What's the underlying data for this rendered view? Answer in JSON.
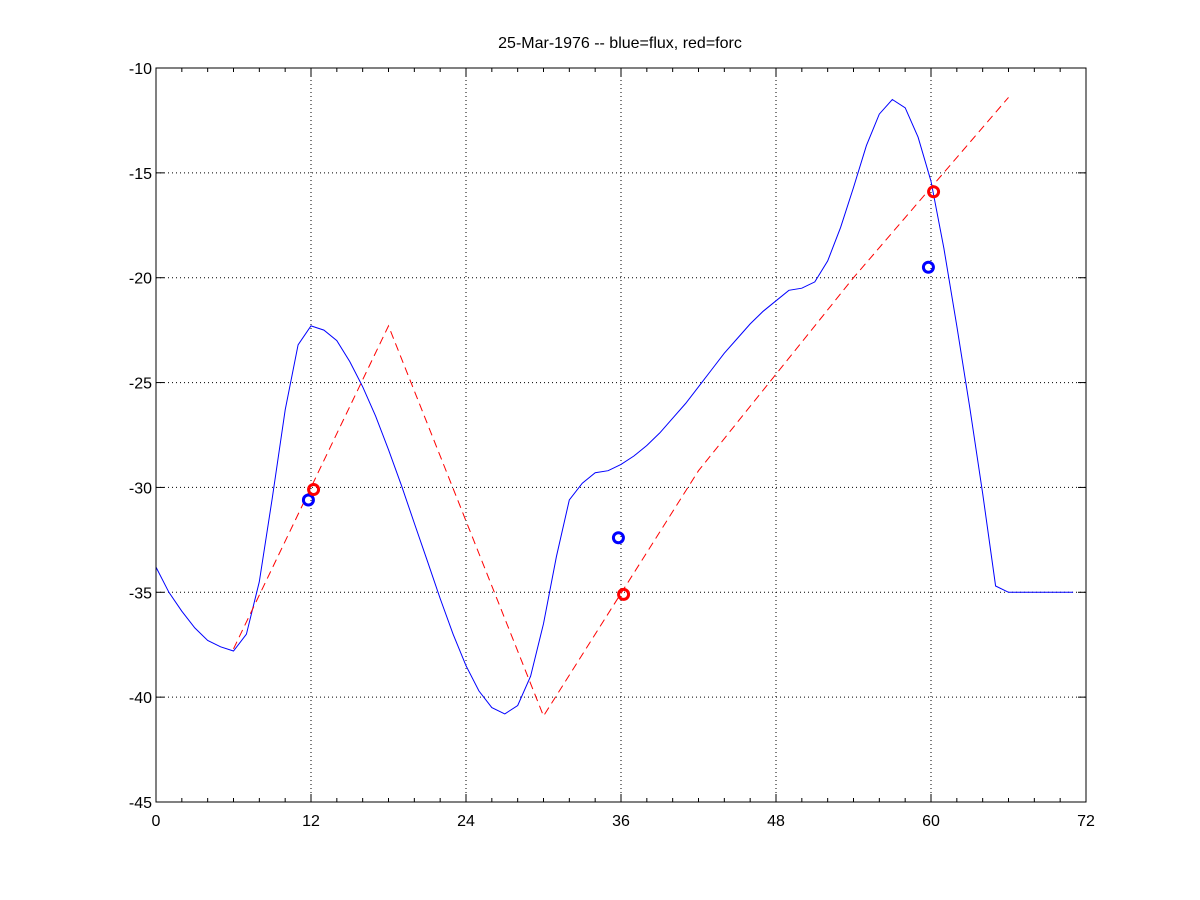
{
  "chart_data": {
    "type": "line",
    "title": "25-Mar-1976 -- blue=flux, red=forc",
    "xlabel": "",
    "ylabel": "",
    "xlim": [
      0,
      72
    ],
    "ylim": [
      -45,
      -10
    ],
    "xticks": [
      0,
      12,
      24,
      36,
      48,
      60,
      72
    ],
    "yticks": [
      -10,
      -15,
      -20,
      -25,
      -30,
      -35,
      -40,
      -45
    ],
    "xtick_labels": [
      "0",
      "12",
      "24",
      "36",
      "48",
      "60",
      "72"
    ],
    "ytick_labels": [
      "-10",
      "-15",
      "-20",
      "-25",
      "-30",
      "-35",
      "-40",
      "-45"
    ],
    "grid": true,
    "series": [
      {
        "color": "#0000ff",
        "style": "solid",
        "x": [
          0,
          1,
          2,
          3,
          4,
          5,
          6,
          7,
          8,
          9,
          10,
          11,
          12,
          13,
          14,
          15,
          16,
          17,
          18,
          19,
          20,
          21,
          22,
          23,
          24,
          25,
          26,
          27,
          28,
          29,
          30,
          31,
          32,
          33,
          34,
          35,
          36,
          37,
          38,
          39,
          40,
          41,
          42,
          43,
          44,
          45,
          46,
          47,
          48,
          49,
          50,
          51,
          52,
          53,
          54,
          55,
          56,
          57,
          58,
          59,
          60,
          61,
          62,
          63,
          64,
          65,
          66,
          67,
          68,
          69,
          70,
          71
        ],
        "y": [
          -33.8,
          -35.0,
          -35.9,
          -36.7,
          -37.3,
          -37.6,
          -37.8,
          -37.0,
          -34.5,
          -30.5,
          -26.3,
          -23.2,
          -22.3,
          -22.5,
          -23.0,
          -24.0,
          -25.2,
          -26.6,
          -28.2,
          -29.9,
          -31.7,
          -33.5,
          -35.3,
          -37.0,
          -38.5,
          -39.7,
          -40.5,
          -40.8,
          -40.4,
          -39.0,
          -36.5,
          -33.3,
          -30.6,
          -29.8,
          -29.3,
          -29.2,
          -28.9,
          -28.5,
          -28.0,
          -27.4,
          -26.7,
          -26.0,
          -25.2,
          -24.4,
          -23.6,
          -22.9,
          -22.2,
          -21.6,
          -21.1,
          -20.6,
          -20.5,
          -20.2,
          -19.2,
          -17.6,
          -15.7,
          -13.7,
          -12.2,
          -11.5,
          -11.9,
          -13.3,
          -15.4,
          -18.6,
          -22.3,
          -26.2,
          -30.3,
          -34.7,
          -35.0,
          -35.0,
          -35.0,
          -35.0,
          -35.0,
          -35.0
        ]
      },
      {
        "color": "#ff0000",
        "style": "dashed",
        "x": [
          6,
          18,
          30,
          42,
          54,
          66
        ],
        "y": [
          -37.7,
          -22.3,
          -40.9,
          -29.2,
          -20.0,
          -11.4
        ]
      }
    ],
    "markers": [
      {
        "color": "#0000ff",
        "x": 11.8,
        "y": -30.6
      },
      {
        "color": "#ff0000",
        "x": 12.2,
        "y": -30.1
      },
      {
        "color": "#0000ff",
        "x": 35.8,
        "y": -32.4
      },
      {
        "color": "#ff0000",
        "x": 36.2,
        "y": -35.1
      },
      {
        "color": "#0000ff",
        "x": 59.8,
        "y": -19.5
      },
      {
        "color": "#ff0000",
        "x": 60.2,
        "y": -15.9
      }
    ]
  }
}
